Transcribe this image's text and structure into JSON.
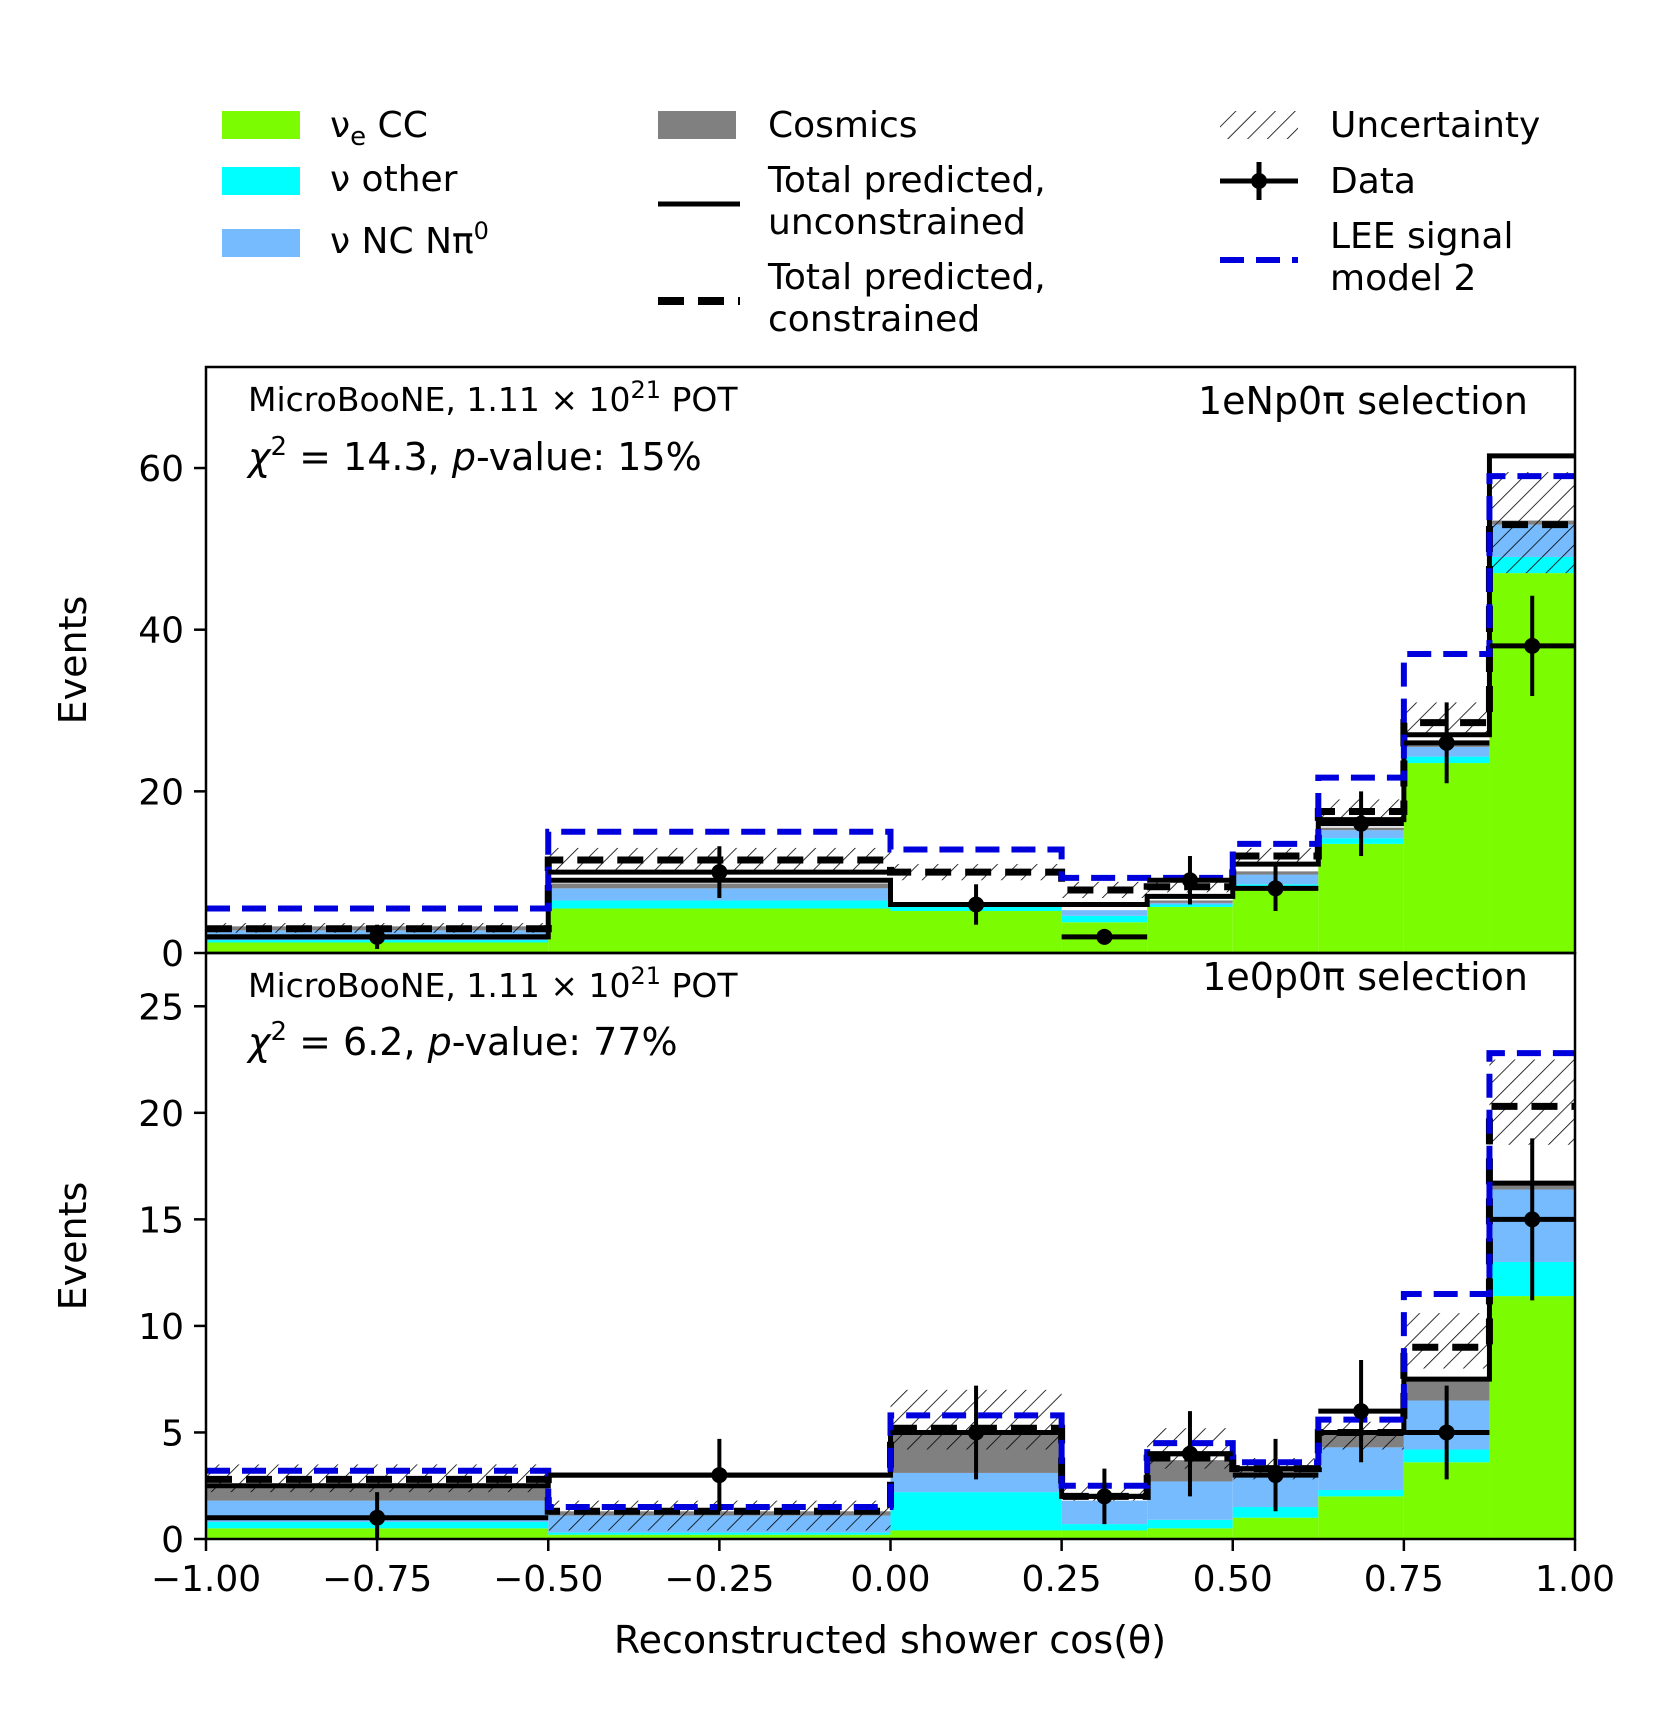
{
  "legend": {
    "nue_cc": {
      "prefix": "ν",
      "sub": "e",
      "suffix": " CC",
      "color": "#7cfc00"
    },
    "nu_other": {
      "label": "ν other",
      "color": "#00ffff"
    },
    "nu_nc_npi0": {
      "prefix": "ν NC Nπ",
      "sup": "0",
      "color": "#77bbff"
    },
    "cosmics": {
      "label": "Cosmics",
      "color": "#808080"
    },
    "total_unconstrained": {
      "line1": "Total predicted,",
      "line2": "unconstrained"
    },
    "total_constrained": {
      "line1": "Total predicted,",
      "line2": "constrained"
    },
    "uncertainty": {
      "label": "Uncertainty"
    },
    "data": {
      "label": "Data"
    },
    "lee": {
      "line1": "LEE signal",
      "line2": "model 2",
      "color": "#0000dd"
    }
  },
  "x_axis": {
    "label": "Reconstructed shower cos(θ)",
    "ticks": [
      "−1.00",
      "−0.75",
      "−0.50",
      "−0.25",
      "0.00",
      "0.25",
      "0.50",
      "0.75",
      "1.00"
    ]
  },
  "chart_data": [
    {
      "type": "bar",
      "stacked": true,
      "title": "1eNp0π selection",
      "ylabel": "Events",
      "ylim": [
        0,
        72.5
      ],
      "xlim": [
        -1.0,
        1.0
      ],
      "y_ticks": [
        "0",
        "20",
        "40",
        "60"
      ],
      "y_tick_values": [
        0,
        20,
        40,
        60
      ],
      "annotation": {
        "experiment": "MicroBooNE, 1.11 × 10",
        "exponent": "21",
        "pot": " POT",
        "chi2": " = 14.3, ",
        "pvalue": "-value: 15%"
      },
      "bin_edges": [
        -1.0,
        -0.5,
        0.0,
        0.25,
        0.375,
        0.5,
        0.625,
        0.75,
        0.875,
        1.0
      ],
      "series": [
        {
          "name": "νe CC",
          "values": [
            1.3,
            5.5,
            5.2,
            3.8,
            5.7,
            8.0,
            13.5,
            23.5,
            47.0
          ]
        },
        {
          "name": "ν other",
          "values": [
            0.3,
            1.0,
            0.5,
            0.8,
            0.3,
            0.5,
            0.7,
            0.8,
            2.0
          ]
        },
        {
          "name": "ν NC Nπ0",
          "values": [
            1.2,
            1.5,
            0.3,
            0.7,
            0.2,
            1.2,
            1.0,
            1.2,
            4.0
          ]
        },
        {
          "name": "Cosmics",
          "values": [
            0.5,
            0.6,
            0.1,
            0.0,
            0.3,
            0.4,
            0.3,
            0.3,
            0.5
          ]
        }
      ],
      "total_unconstrained": [
        2.0,
        9.0,
        6.0,
        6.0,
        7.0,
        11.0,
        16.5,
        27.0,
        61.5
      ],
      "total_constrained": [
        3.0,
        11.5,
        10.0,
        7.8,
        8.2,
        12.0,
        17.5,
        28.5,
        53.0
      ],
      "uncertainty_low": [
        2.5,
        9.8,
        9.0,
        6.8,
        7.5,
        11.0,
        16.0,
        27.0,
        47.0
      ],
      "uncertainty_high": [
        3.7,
        13.0,
        11.0,
        8.8,
        9.0,
        13.0,
        19.0,
        31.0,
        59.5
      ],
      "lee_signal": [
        5.5,
        15.0,
        12.8,
        9.3,
        9.3,
        13.5,
        21.7,
        37.0,
        59.0
      ],
      "data": {
        "x": [
          -0.75,
          -0.25,
          0.125,
          0.3125,
          0.4375,
          0.5625,
          0.6875,
          0.8125,
          0.9375
        ],
        "y": [
          2,
          10,
          6,
          2,
          9,
          8,
          16,
          26,
          38
        ],
        "yerr": [
          1.5,
          3.2,
          2.5,
          0.0,
          3.0,
          2.8,
          4.0,
          5.0,
          6.2
        ]
      }
    },
    {
      "type": "bar",
      "stacked": true,
      "title": "1e0p0π selection",
      "ylabel": "Events",
      "ylim": [
        0,
        27.5
      ],
      "xlim": [
        -1.0,
        1.0
      ],
      "y_ticks": [
        "0",
        "5",
        "10",
        "15",
        "20",
        "25"
      ],
      "y_tick_values": [
        0,
        5,
        10,
        15,
        20,
        25
      ],
      "annotation": {
        "experiment": "MicroBooNE, 1.11 × 10",
        "exponent": "21",
        "pot": " POT",
        "chi2": " = 6.2, ",
        "pvalue": "-value: 77%"
      },
      "bin_edges": [
        -1.0,
        -0.5,
        0.0,
        0.25,
        0.375,
        0.5,
        0.625,
        0.75,
        0.875,
        1.0
      ],
      "series": [
        {
          "name": "νe CC",
          "values": [
            0.5,
            0.2,
            0.4,
            0.4,
            0.5,
            1.0,
            2.0,
            3.6,
            11.4
          ]
        },
        {
          "name": "ν other",
          "values": [
            0.3,
            0.1,
            1.8,
            0.3,
            0.4,
            0.5,
            0.3,
            0.6,
            1.6
          ]
        },
        {
          "name": "ν NC Nπ0",
          "values": [
            1.0,
            0.8,
            0.9,
            1.1,
            1.8,
            1.5,
            2.0,
            2.3,
            3.4
          ]
        },
        {
          "name": "Cosmics",
          "values": [
            0.6,
            0.2,
            2.0,
            0.0,
            1.0,
            0.3,
            0.6,
            1.0,
            0.3
          ]
        }
      ],
      "total_unconstrained": [
        2.5,
        3.0,
        5.0,
        2.0,
        4.0,
        3.3,
        5.0,
        7.5,
        16.7
      ],
      "total_constrained": [
        2.8,
        1.3,
        5.2,
        2.0,
        3.8,
        3.3,
        5.0,
        9.0,
        20.3
      ],
      "uncertainty_low": [
        2.2,
        0.4,
        4.2,
        1.8,
        3.3,
        2.8,
        4.2,
        8.0,
        18.5
      ],
      "uncertainty_high": [
        3.5,
        1.8,
        7.0,
        2.6,
        5.2,
        3.8,
        5.5,
        10.6,
        22.5
      ],
      "lee_signal": [
        3.2,
        1.5,
        5.8,
        2.5,
        4.5,
        3.6,
        5.6,
        11.5,
        22.8
      ],
      "data": {
        "x": [
          -0.75,
          -0.25,
          0.125,
          0.3125,
          0.4375,
          0.5625,
          0.6875,
          0.8125,
          0.9375
        ],
        "y": [
          1,
          3,
          5,
          2,
          4,
          3,
          6,
          5,
          15
        ],
        "yerr": [
          1.2,
          1.7,
          2.2,
          1.3,
          2.0,
          1.7,
          2.4,
          2.2,
          3.8
        ]
      }
    }
  ]
}
